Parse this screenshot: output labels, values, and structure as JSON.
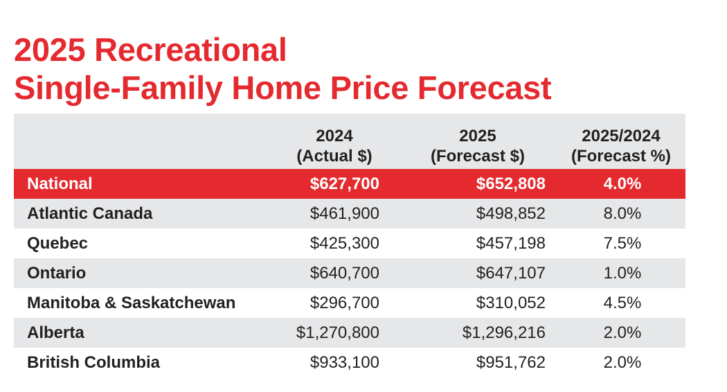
{
  "chart_data": {
    "type": "table",
    "title_lines": [
      "2025 Recreational",
      "Single-Family Home Price Forecast"
    ],
    "columns": [
      {
        "line1": "",
        "line2": ""
      },
      {
        "line1": "2024",
        "line2": "(Actual $)"
      },
      {
        "line1": "2025",
        "line2": "(Forecast $)"
      },
      {
        "line1": "2025/2024",
        "line2": "(Forecast %)"
      }
    ],
    "rows": [
      {
        "region": "National",
        "actual_2024": "$627,700",
        "forecast_2025": "$652,808",
        "forecast_pct": "4.0%",
        "highlight": true
      },
      {
        "region": "Atlantic Canada",
        "actual_2024": "$461,900",
        "forecast_2025": "$498,852",
        "forecast_pct": "8.0%"
      },
      {
        "region": "Quebec",
        "actual_2024": "$425,300",
        "forecast_2025": "$457,198",
        "forecast_pct": "7.5%"
      },
      {
        "region": "Ontario",
        "actual_2024": "$640,700",
        "forecast_2025": "$647,107",
        "forecast_pct": "1.0%"
      },
      {
        "region": "Manitoba & Saskatchewan",
        "actual_2024": "$296,700",
        "forecast_2025": "$310,052",
        "forecast_pct": "4.5%"
      },
      {
        "region": "Alberta",
        "actual_2024": "$1,270,800",
        "forecast_2025": "$1,296,216",
        "forecast_pct": "2.0%"
      },
      {
        "region": "British Columbia",
        "actual_2024": "$933,100",
        "forecast_2025": "$951,762",
        "forecast_pct": "2.0%"
      }
    ],
    "colors": {
      "title": "#e42a2f",
      "highlight_row": "#e42a2f",
      "stripe": "#e6e7e8",
      "text": "#231f20"
    }
  }
}
